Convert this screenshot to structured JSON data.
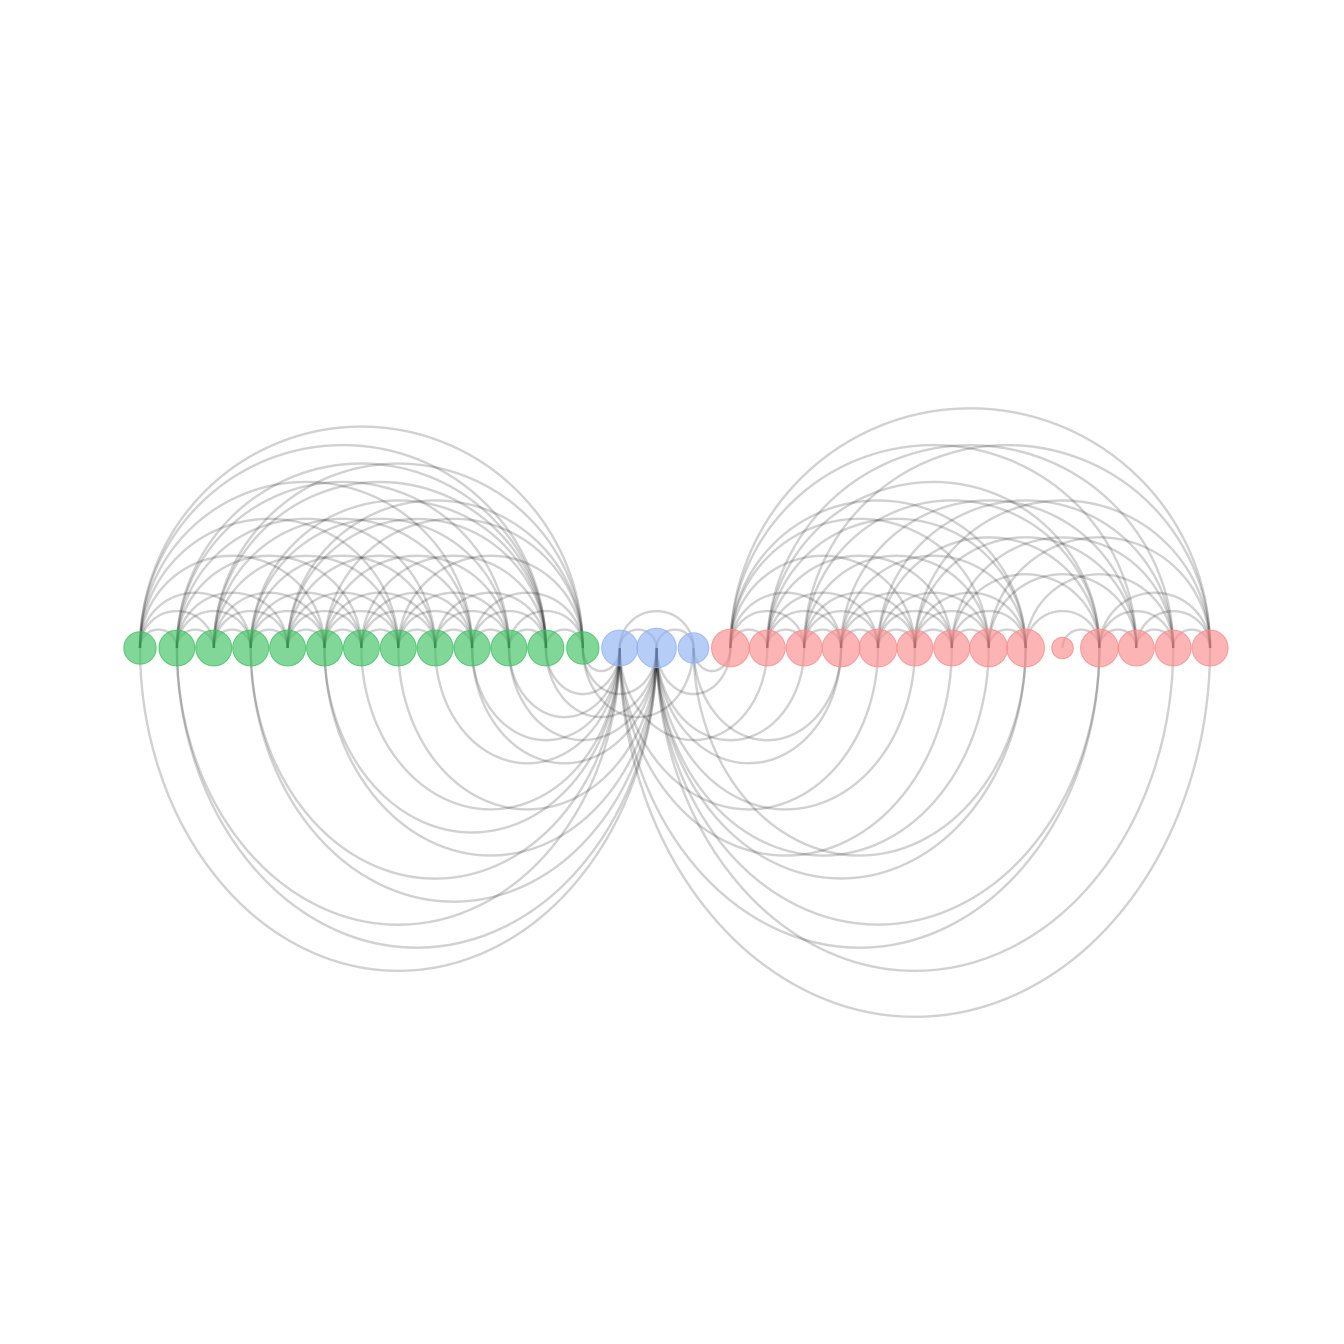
{
  "diagram": {
    "type": "arc-diagram",
    "groups": [
      {
        "name": "group-1",
        "color": "#3dc261",
        "count": 13
      },
      {
        "name": "group-2",
        "color": "#8fb2f5",
        "count": 3
      },
      {
        "name": "group-3",
        "color": "#fa8c8c",
        "count": 14
      }
    ],
    "nodes": [
      {
        "id": 0,
        "group": 0,
        "size": 0.9
      },
      {
        "id": 1,
        "group": 0,
        "size": 1.0
      },
      {
        "id": 2,
        "group": 0,
        "size": 1.0
      },
      {
        "id": 3,
        "group": 0,
        "size": 1.0
      },
      {
        "id": 4,
        "group": 0,
        "size": 1.0
      },
      {
        "id": 5,
        "group": 0,
        "size": 1.0
      },
      {
        "id": 6,
        "group": 0,
        "size": 1.0
      },
      {
        "id": 7,
        "group": 0,
        "size": 1.0
      },
      {
        "id": 8,
        "group": 0,
        "size": 1.0
      },
      {
        "id": 9,
        "group": 0,
        "size": 1.0
      },
      {
        "id": 10,
        "group": 0,
        "size": 1.0
      },
      {
        "id": 11,
        "group": 0,
        "size": 1.0
      },
      {
        "id": 12,
        "group": 0,
        "size": 0.9
      },
      {
        "id": 13,
        "group": 1,
        "size": 1.0
      },
      {
        "id": 14,
        "group": 1,
        "size": 1.1
      },
      {
        "id": 15,
        "group": 1,
        "size": 0.85
      },
      {
        "id": 16,
        "group": 2,
        "size": 1.05
      },
      {
        "id": 17,
        "group": 2,
        "size": 1.0
      },
      {
        "id": 18,
        "group": 2,
        "size": 1.0
      },
      {
        "id": 19,
        "group": 2,
        "size": 1.05
      },
      {
        "id": 20,
        "group": 2,
        "size": 1.05
      },
      {
        "id": 21,
        "group": 2,
        "size": 1.0
      },
      {
        "id": 22,
        "group": 2,
        "size": 1.0
      },
      {
        "id": 23,
        "group": 2,
        "size": 1.05
      },
      {
        "id": 24,
        "group": 2,
        "size": 1.05
      },
      {
        "id": 25,
        "group": 2,
        "size": 0.6
      },
      {
        "id": 26,
        "group": 2,
        "size": 1.05
      },
      {
        "id": 27,
        "group": 2,
        "size": 1.0
      },
      {
        "id": 28,
        "group": 2,
        "size": 1.0
      },
      {
        "id": 29,
        "group": 2,
        "size": 1.0
      }
    ],
    "edges_above": [
      [
        0,
        1
      ],
      [
        0,
        2
      ],
      [
        0,
        3
      ],
      [
        0,
        5
      ],
      [
        0,
        7
      ],
      [
        0,
        9
      ],
      [
        0,
        11
      ],
      [
        0,
        12
      ],
      [
        1,
        2
      ],
      [
        1,
        3
      ],
      [
        1,
        4
      ],
      [
        1,
        6
      ],
      [
        1,
        8
      ],
      [
        1,
        10
      ],
      [
        1,
        11
      ],
      [
        2,
        3
      ],
      [
        2,
        4
      ],
      [
        2,
        5
      ],
      [
        2,
        7
      ],
      [
        2,
        9
      ],
      [
        2,
        11
      ],
      [
        2,
        12
      ],
      [
        3,
        4
      ],
      [
        3,
        5
      ],
      [
        3,
        6
      ],
      [
        3,
        8
      ],
      [
        3,
        10
      ],
      [
        3,
        11
      ],
      [
        4,
        5
      ],
      [
        4,
        6
      ],
      [
        4,
        7
      ],
      [
        4,
        9
      ],
      [
        4,
        11
      ],
      [
        4,
        12
      ],
      [
        5,
        6
      ],
      [
        5,
        7
      ],
      [
        5,
        8
      ],
      [
        5,
        10
      ],
      [
        5,
        12
      ],
      [
        6,
        7
      ],
      [
        6,
        8
      ],
      [
        6,
        9
      ],
      [
        6,
        11
      ],
      [
        7,
        8
      ],
      [
        7,
        9
      ],
      [
        7,
        10
      ],
      [
        7,
        12
      ],
      [
        8,
        9
      ],
      [
        8,
        10
      ],
      [
        8,
        11
      ],
      [
        9,
        10
      ],
      [
        9,
        11
      ],
      [
        9,
        12
      ],
      [
        10,
        11
      ],
      [
        10,
        12
      ],
      [
        11,
        12
      ],
      [
        13,
        14
      ],
      [
        13,
        15
      ],
      [
        14,
        15
      ],
      [
        16,
        17
      ],
      [
        16,
        18
      ],
      [
        16,
        19
      ],
      [
        16,
        21
      ],
      [
        16,
        23
      ],
      [
        16,
        24
      ],
      [
        16,
        27
      ],
      [
        16,
        29
      ],
      [
        17,
        18
      ],
      [
        17,
        19
      ],
      [
        17,
        20
      ],
      [
        17,
        22
      ],
      [
        17,
        24
      ],
      [
        17,
        26
      ],
      [
        17,
        28
      ],
      [
        18,
        19
      ],
      [
        18,
        20
      ],
      [
        18,
        21
      ],
      [
        18,
        23
      ],
      [
        18,
        26
      ],
      [
        18,
        29
      ],
      [
        19,
        20
      ],
      [
        19,
        21
      ],
      [
        19,
        22
      ],
      [
        19,
        24
      ],
      [
        19,
        27
      ],
      [
        20,
        21
      ],
      [
        20,
        22
      ],
      [
        20,
        23
      ],
      [
        20,
        26
      ],
      [
        20,
        28
      ],
      [
        21,
        22
      ],
      [
        21,
        23
      ],
      [
        21,
        24
      ],
      [
        21,
        27
      ],
      [
        21,
        29
      ],
      [
        22,
        23
      ],
      [
        22,
        24
      ],
      [
        22,
        26
      ],
      [
        22,
        28
      ],
      [
        23,
        24
      ],
      [
        23,
        27
      ],
      [
        23,
        29
      ],
      [
        24,
        26
      ],
      [
        24,
        28
      ],
      [
        25,
        26
      ],
      [
        26,
        27
      ],
      [
        26,
        28
      ],
      [
        26,
        29
      ],
      [
        27,
        28
      ],
      [
        27,
        29
      ],
      [
        28,
        29
      ]
    ],
    "edges_below": [
      [
        0,
        14
      ],
      [
        1,
        14
      ],
      [
        1,
        13
      ],
      [
        3,
        14
      ],
      [
        3,
        13
      ],
      [
        5,
        13
      ],
      [
        5,
        14
      ],
      [
        6,
        13
      ],
      [
        7,
        14
      ],
      [
        8,
        13
      ],
      [
        9,
        14
      ],
      [
        9,
        13
      ],
      [
        10,
        13
      ],
      [
        10,
        14
      ],
      [
        11,
        13
      ],
      [
        11,
        14
      ],
      [
        12,
        13
      ],
      [
        12,
        14
      ],
      [
        12,
        15
      ],
      [
        14,
        16
      ],
      [
        14,
        18
      ],
      [
        14,
        19
      ],
      [
        14,
        21
      ],
      [
        14,
        23
      ],
      [
        14,
        24
      ],
      [
        14,
        26
      ],
      [
        14,
        28
      ],
      [
        13,
        17
      ],
      [
        13,
        20
      ],
      [
        13,
        22
      ],
      [
        13,
        26
      ],
      [
        13,
        29
      ],
      [
        15,
        16
      ],
      [
        15,
        19
      ],
      [
        15,
        24
      ]
    ]
  }
}
